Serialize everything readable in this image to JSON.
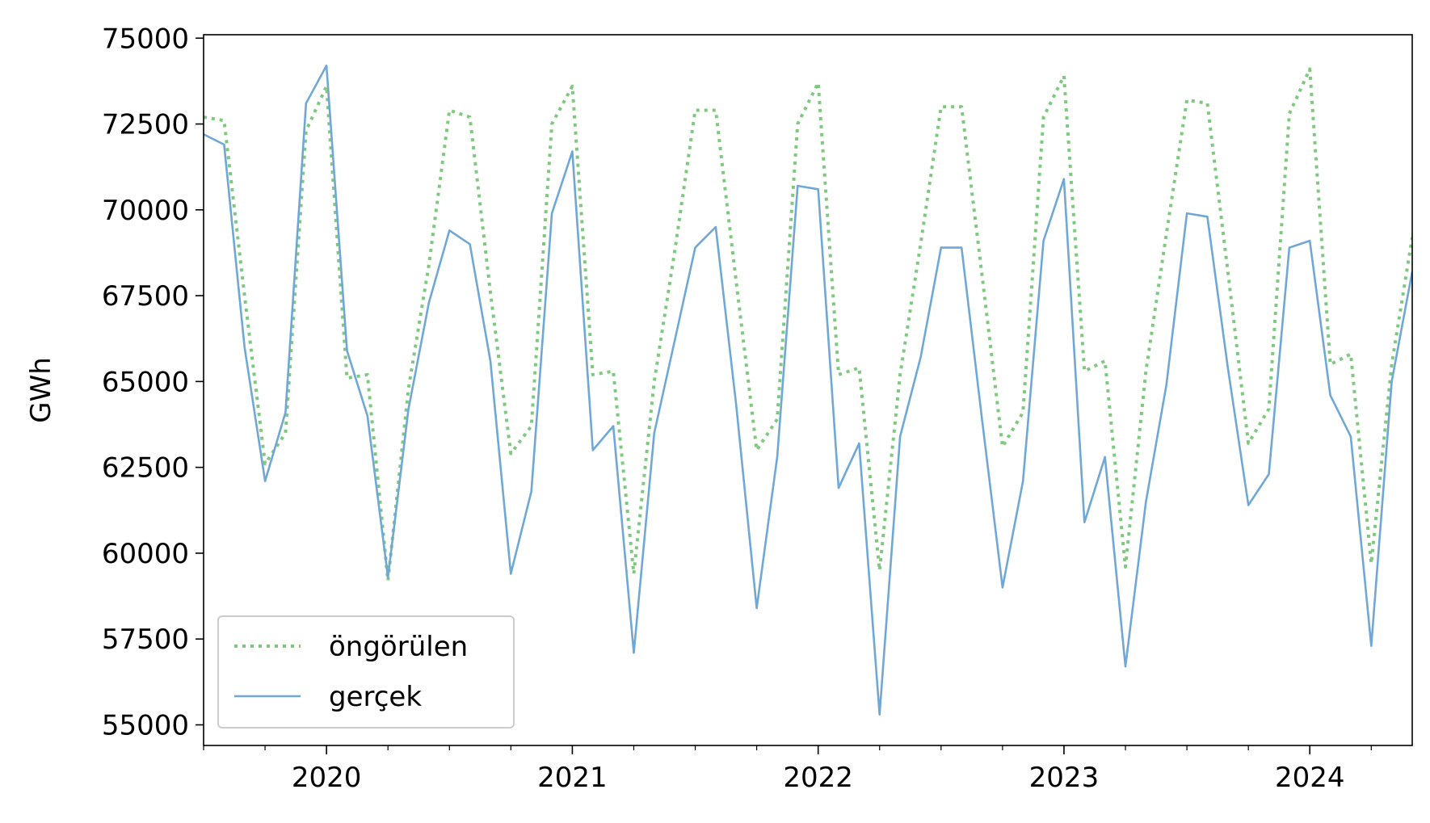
{
  "chart_data": {
    "type": "line",
    "title": "",
    "xlabel": "",
    "ylabel": "GWh",
    "ylim": [
      54400,
      75100
    ],
    "xlim": [
      "2019-07",
      "2024-06"
    ],
    "yticks": [
      55000,
      57500,
      60000,
      62500,
      65000,
      67500,
      70000,
      72500,
      75000
    ],
    "xticks": [
      {
        "date": "2020-01",
        "label": "2020"
      },
      {
        "date": "2021-01",
        "label": "2021"
      },
      {
        "date": "2022-01",
        "label": "2022"
      },
      {
        "date": "2023-01",
        "label": "2023"
      },
      {
        "date": "2024-01",
        "label": "2024"
      }
    ],
    "grid": false,
    "legend": "lower-left",
    "x": [
      "2019-07",
      "2019-08",
      "2019-09",
      "2019-10",
      "2019-11",
      "2019-12",
      "2020-01",
      "2020-02",
      "2020-03",
      "2020-04",
      "2020-05",
      "2020-06",
      "2020-07",
      "2020-08",
      "2020-09",
      "2020-10",
      "2020-11",
      "2020-12",
      "2021-01",
      "2021-02",
      "2021-03",
      "2021-04",
      "2021-05",
      "2021-06",
      "2021-07",
      "2021-08",
      "2021-09",
      "2021-10",
      "2021-11",
      "2021-12",
      "2022-01",
      "2022-02",
      "2022-03",
      "2022-04",
      "2022-05",
      "2022-06",
      "2022-07",
      "2022-08",
      "2022-09",
      "2022-10",
      "2022-11",
      "2022-12",
      "2023-01",
      "2023-02",
      "2023-03",
      "2023-04",
      "2023-05",
      "2023-06",
      "2023-07",
      "2023-08",
      "2023-09",
      "2023-10",
      "2023-11",
      "2023-12",
      "2024-01",
      "2024-02",
      "2024-03",
      "2024-04",
      "2024-05",
      "2024-06"
    ],
    "series": [
      {
        "name": "öngörülen",
        "color": "#7fc97f",
        "style": "dotted",
        "values": [
          72700,
          72600,
          67500,
          62600,
          63500,
          72300,
          73600,
          65100,
          65200,
          59200,
          64800,
          68400,
          72900,
          72700,
          67600,
          62900,
          63700,
          72500,
          73600,
          65200,
          65300,
          59400,
          65000,
          68800,
          72900,
          72900,
          67900,
          63000,
          63900,
          72500,
          73700,
          65200,
          65400,
          59500,
          65200,
          69000,
          73000,
          73000,
          68100,
          63100,
          64100,
          72700,
          73900,
          65300,
          65600,
          59600,
          65300,
          69300,
          73200,
          73100,
          68200,
          63200,
          64200,
          72800,
          74100,
          65500,
          65800,
          59700,
          65500,
          69200
        ]
      },
      {
        "name": "gerçek",
        "color": "#6fa8d6",
        "style": "solid",
        "values": [
          72200,
          71900,
          66000,
          62100,
          64100,
          73100,
          74200,
          65900,
          64000,
          59300,
          64200,
          67300,
          69400,
          69000,
          65600,
          59400,
          61800,
          69900,
          71700,
          63000,
          63700,
          57100,
          63500,
          66200,
          68900,
          69500,
          64300,
          58400,
          62800,
          70700,
          70600,
          61900,
          63200,
          55300,
          63400,
          65700,
          68900,
          68900,
          63900,
          59000,
          62100,
          69100,
          70900,
          60900,
          62800,
          56700,
          61500,
          64900,
          69900,
          69800,
          65400,
          61400,
          62300,
          68900,
          69100,
          64600,
          63400,
          57300,
          65000,
          68200
        ]
      }
    ]
  }
}
